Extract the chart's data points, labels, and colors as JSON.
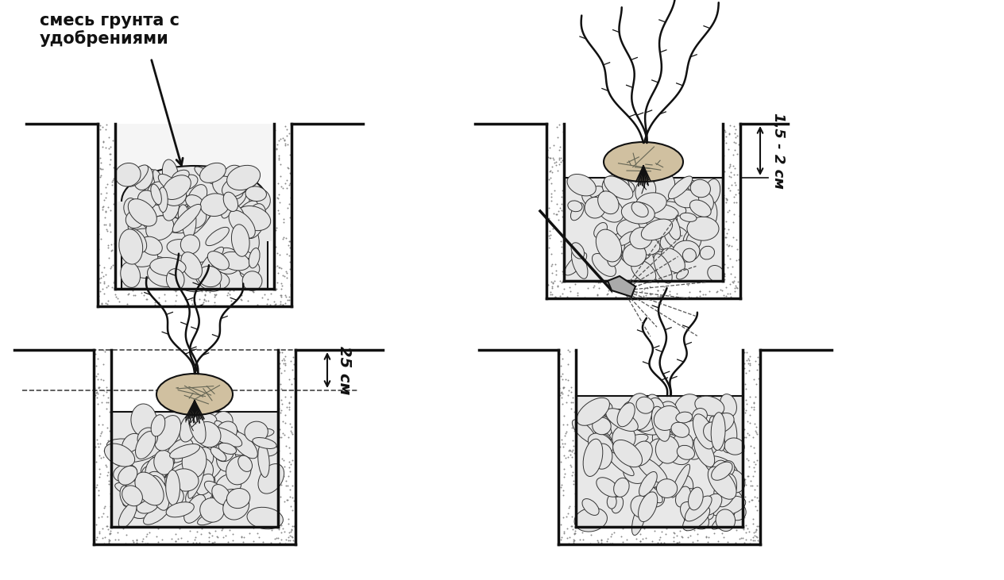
{
  "background_color": "#ffffff",
  "text_color": "#000000",
  "label_top_left_line1": "смесь грунта с",
  "label_top_left_line2": "удобрениями",
  "label_dim_right": "1,5 - 2 см",
  "label_dim_bottom": "25 см",
  "lw_pit": 2.5,
  "lw_branch": 1.8,
  "font_size_label": 15,
  "font_size_dim": 13,
  "stone_face": "#e5e5e5",
  "stone_edge": "#333333",
  "soil_dot_color": "#888888",
  "pit_fill": "#f0f0f0"
}
